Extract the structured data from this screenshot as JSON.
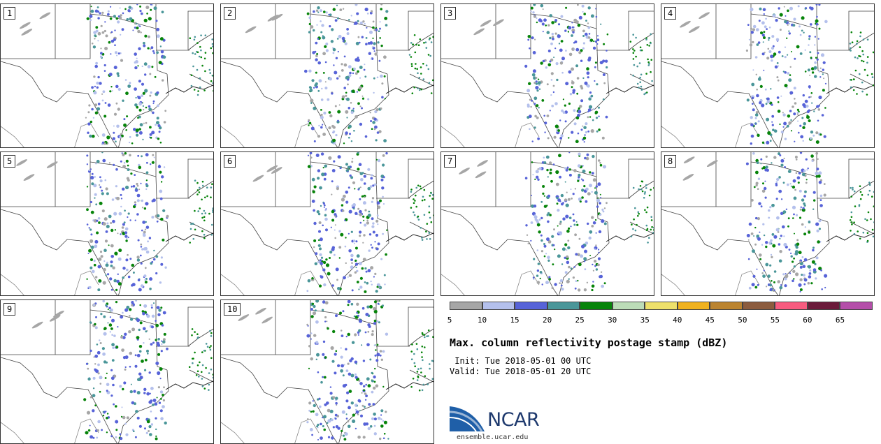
{
  "panels": [
    "1",
    "2",
    "3",
    "4",
    "5",
    "6",
    "7",
    "8",
    "9",
    "10"
  ],
  "colorbar": {
    "colors": [
      "#a6a6a6",
      "#b4c0ec",
      "#5763d8",
      "#4a9699",
      "#07840a",
      "#bcdcb8",
      "#ede06b",
      "#f0b21f",
      "#bb8430",
      "#8c5c3e",
      "#f75b7f",
      "#6b1a3a",
      "#b44ea9"
    ],
    "tick_labels": [
      "5",
      "10",
      "15",
      "20",
      "25",
      "30",
      "35",
      "40",
      "45",
      "50",
      "55",
      "60",
      "65"
    ]
  },
  "chart_data": {
    "type": "heatmap",
    "title": "Max. column reflectivity postage stamp (dBZ)",
    "init": " Init: Tue 2018-05-01 00 UTC",
    "valid": "Valid: Tue 2018-05-01 20 UTC",
    "ensemble_members": [
      1,
      2,
      3,
      4,
      5,
      6,
      7,
      8,
      9,
      10
    ],
    "colorbar_levels_dBZ": [
      5,
      10,
      15,
      20,
      25,
      30,
      35,
      40,
      45,
      50,
      55,
      60,
      65
    ]
  },
  "logo": {
    "text": "NCAR",
    "url": "ensemble.ucar.edu"
  }
}
